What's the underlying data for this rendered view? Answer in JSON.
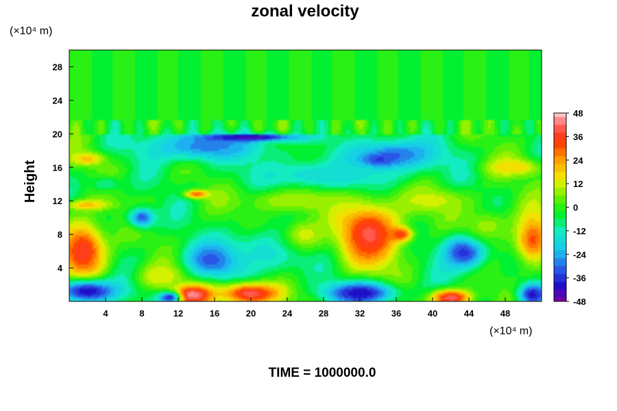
{
  "chart_data": {
    "type": "heatmap",
    "title": "zonal velocity",
    "ylabel": "Height",
    "xlabel": "",
    "x_unit": "(×10⁴ m)",
    "y_unit": "(×10⁴ m)",
    "xlim": [
      0,
      52
    ],
    "ylim": [
      0,
      30
    ],
    "x_ticks": [
      4,
      8,
      12,
      16,
      20,
      24,
      28,
      32,
      36,
      40,
      44,
      48
    ],
    "y_ticks": [
      4,
      8,
      12,
      16,
      20,
      24,
      28
    ],
    "colorbar": {
      "min": -48,
      "max": 48,
      "ticks": [
        48,
        36,
        24,
        12,
        0,
        -12,
        -24,
        -36,
        -48
      ],
      "stops": [
        {
          "v": -48,
          "color": "#7a00a8"
        },
        {
          "v": -40,
          "color": "#1e10c8"
        },
        {
          "v": -32,
          "color": "#2a55e6"
        },
        {
          "v": -22,
          "color": "#18c8f0"
        },
        {
          "v": -12,
          "color": "#12ecc0"
        },
        {
          "v": -3,
          "color": "#00f020"
        },
        {
          "v": 6,
          "color": "#7af000"
        },
        {
          "v": 14,
          "color": "#f0f000"
        },
        {
          "v": 24,
          "color": "#ffa000"
        },
        {
          "v": 34,
          "color": "#ff3000"
        },
        {
          "v": 42,
          "color": "#ff6868"
        },
        {
          "v": 48,
          "color": "#ffc8c8"
        }
      ]
    },
    "background_value": -2,
    "features": [
      {
        "x": 1.5,
        "y": 6,
        "rx": 2.5,
        "ry": 3.5,
        "v": 38
      },
      {
        "x": 51,
        "y": 7.5,
        "rx": 2.0,
        "ry": 3.0,
        "v": 32
      },
      {
        "x": 33,
        "y": 8,
        "rx": 3.5,
        "ry": 3.8,
        "v": 40
      },
      {
        "x": 36.5,
        "y": 8,
        "rx": 1.2,
        "ry": 0.8,
        "v": 36
      },
      {
        "x": 13.5,
        "y": 0.8,
        "rx": 2.2,
        "ry": 1.2,
        "v": 48
      },
      {
        "x": 20,
        "y": 1.0,
        "rx": 3.5,
        "ry": 1.4,
        "v": 44
      },
      {
        "x": 42,
        "y": 0.4,
        "rx": 2.2,
        "ry": 1.0,
        "v": 42
      },
      {
        "x": 16,
        "y": 5,
        "rx": 3.2,
        "ry": 2.0,
        "v": -36
      },
      {
        "x": 43.5,
        "y": 6,
        "rx": 2.5,
        "ry": 2.2,
        "v": -38
      },
      {
        "x": 8,
        "y": 10,
        "rx": 1.5,
        "ry": 1.2,
        "v": -32
      },
      {
        "x": 2,
        "y": 1.2,
        "rx": 3.5,
        "ry": 1.4,
        "v": -42
      },
      {
        "x": 32,
        "y": 1.0,
        "rx": 4.0,
        "ry": 1.3,
        "v": -42
      },
      {
        "x": 51,
        "y": 0.8,
        "rx": 1.6,
        "ry": 1.4,
        "v": -40
      },
      {
        "x": 11,
        "y": 0.5,
        "rx": 1.2,
        "ry": 0.7,
        "v": -40
      },
      {
        "x": 15,
        "y": 18.5,
        "rx": 7.0,
        "ry": 1.8,
        "v": -28
      },
      {
        "x": 20,
        "y": 19.6,
        "rx": 5.5,
        "ry": 0.5,
        "v": -44
      },
      {
        "x": 36,
        "y": 17.5,
        "rx": 5.0,
        "ry": 2.0,
        "v": -30
      },
      {
        "x": 34,
        "y": 16.8,
        "rx": 2.0,
        "ry": 0.8,
        "v": -40
      },
      {
        "x": 28,
        "y": 15,
        "rx": 8.0,
        "ry": 2.0,
        "v": -18
      },
      {
        "x": 22,
        "y": 6,
        "rx": 5.0,
        "ry": 3.0,
        "v": -16
      },
      {
        "x": 40,
        "y": 12,
        "rx": 4.0,
        "ry": 1.5,
        "v": 12
      },
      {
        "x": 25,
        "y": 12,
        "rx": 6.0,
        "ry": 1.5,
        "v": 10
      },
      {
        "x": 2,
        "y": 11.5,
        "rx": 2.5,
        "ry": 0.6,
        "v": 20
      },
      {
        "x": 14,
        "y": 12.8,
        "rx": 1.3,
        "ry": 0.5,
        "v": 30
      },
      {
        "x": 49,
        "y": 16,
        "rx": 3.0,
        "ry": 1.0,
        "v": 18
      },
      {
        "x": 2,
        "y": 17,
        "rx": 1.8,
        "ry": 0.8,
        "v": 20
      },
      {
        "x": 4,
        "y": 14,
        "rx": 2.0,
        "ry": 1.0,
        "v": -10
      },
      {
        "x": 26,
        "y": 8,
        "rx": 2.5,
        "ry": 2.0,
        "v": 12
      },
      {
        "x": 46,
        "y": 9,
        "rx": 3.0,
        "ry": 2.0,
        "v": 8
      },
      {
        "x": 10,
        "y": 3,
        "rx": 2.5,
        "ry": 1.5,
        "v": 14
      }
    ],
    "upper_value": -2,
    "boundary_height": 20.4
  },
  "footer": {
    "time_label": "TIME = 1000000.0"
  }
}
